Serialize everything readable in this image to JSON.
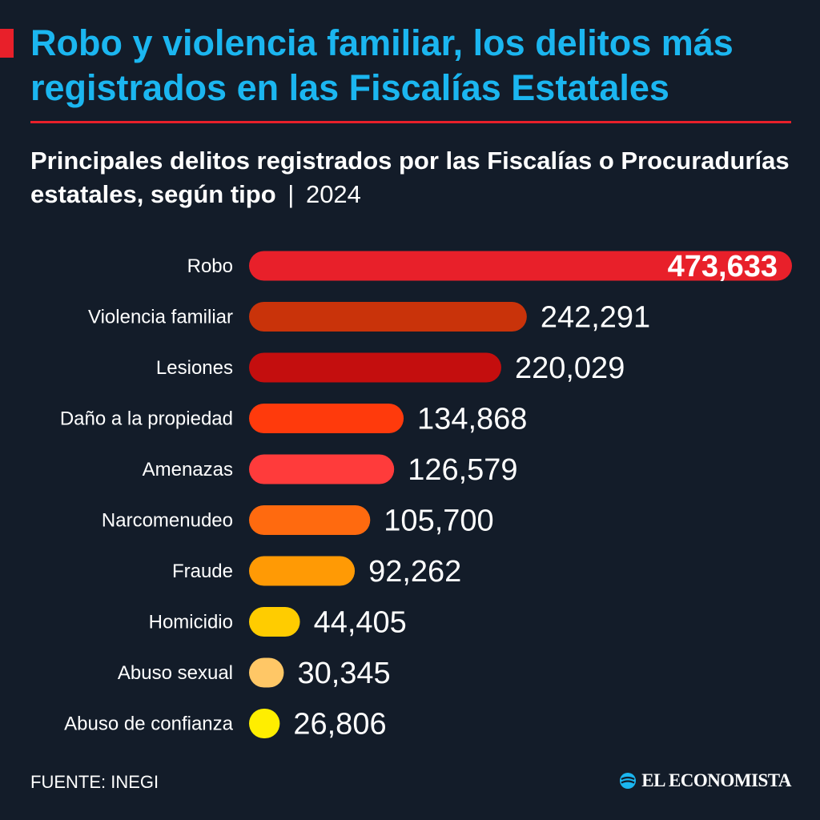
{
  "header": {
    "title": "Robo y violencia familiar, los delitos más registrados en las Fiscalías Estatales",
    "subtitle": "Principales delitos registrados por las Fiscalías o Procuradurías estatales, según tipo",
    "separator": "|",
    "year": "2024"
  },
  "footer": {
    "source": "FUENTE: INEGI",
    "brand": "EL ECONOMISTA",
    "brand_icon": "globe-icon"
  },
  "colors": {
    "background": "#131c29",
    "title": "#1bb6f0",
    "accent": "#e8202a"
  },
  "chart_data": {
    "type": "bar",
    "orientation": "horizontal",
    "title": "Principales delitos registrados por las Fiscalías o Procuradurías estatales, según tipo",
    "xlabel": "",
    "ylabel": "",
    "grid": false,
    "xlim": [
      0,
      473633
    ],
    "categories": [
      "Robo",
      "Violencia familiar",
      "Lesiones",
      "Daño a la propiedad",
      "Amenazas",
      "Narcomenudeo",
      "Fraude",
      "Homicidio",
      "Abuso sexual",
      "Abuso de confianza"
    ],
    "values": [
      473633,
      242291,
      220029,
      134868,
      126579,
      105700,
      92262,
      44405,
      30345,
      26806
    ],
    "value_labels": [
      "473,633",
      "242,291",
      "220,029",
      "134,868",
      "126,579",
      "105,700",
      "92,262",
      "44,405",
      "30,345",
      "26,806"
    ],
    "bar_colors": [
      "#e8202a",
      "#c9330a",
      "#c40e0e",
      "#ff3a0c",
      "#ff3b3b",
      "#ff6a0f",
      "#ff9a05",
      "#ffcc00",
      "#ffc766",
      "#ffee00"
    ]
  }
}
